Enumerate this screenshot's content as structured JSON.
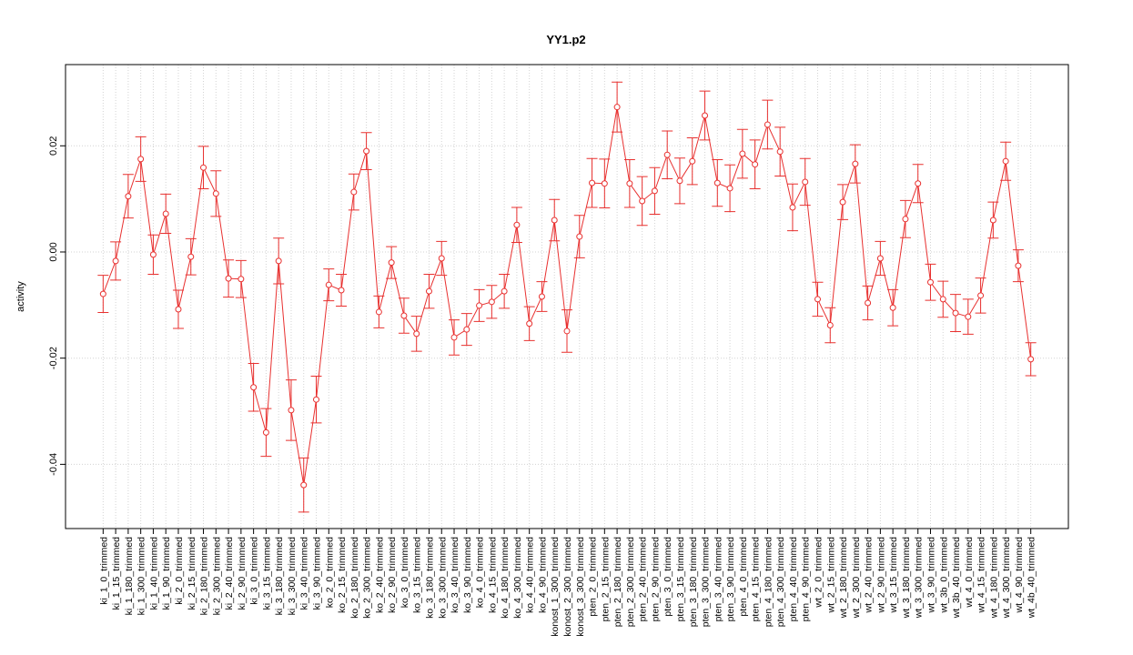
{
  "chart_data": {
    "type": "line",
    "title": "YY1.p2",
    "y_label": "activity",
    "categories": [
      "ki_1_0_trimmed",
      "ki_1_15_trimmed",
      "ki_1_180_trimmed",
      "ki_1_300_trimmed",
      "ki_1_40_trimmed",
      "ki_1_90_trimmed",
      "ki_2_0_trimmed",
      "ki_2_15_trimmed",
      "ki_2_180_trimmed",
      "ki_2_300_trimmed",
      "ki_2_40_trimmed",
      "ki_2_90_trimmed",
      "ki_3_0_trimmed",
      "ki_3_15_trimmed",
      "ki_3_180_trimmed",
      "ki_3_300_trimmed",
      "ki_3_40_trimmed",
      "ki_3_90_trimmed",
      "ko_2_0_trimmed",
      "ko_2_15_trimmed",
      "ko_2_180_trimmed",
      "ko_2_300_trimmed",
      "ko_2_40_trimmed",
      "ko_2_90_trimmed",
      "ko_3_0_trimmed",
      "ko_3_15_trimmed",
      "ko_3_180_trimmed",
      "ko_3_300_trimmed",
      "ko_3_40_trimmed",
      "ko_3_90_trimmed",
      "ko_4_0_trimmed",
      "ko_4_15_trimmed",
      "ko_4_180_trimmed",
      "ko_4_300_trimmed",
      "ko_4_40_trimmed",
      "ko_4_90_trimmed",
      "konost_1_300_trimmed",
      "konost_2_300_trimmed",
      "konost_3_300_trimmed",
      "pten_2_0_trimmed",
      "pten_2_15_trimmed",
      "pten_2_180_trimmed",
      "pten_2_300_trimmed",
      "pten_2_40_trimmed",
      "pten_2_90_trimmed",
      "pten_3_0_trimmed",
      "pten_3_15_trimmed",
      "pten_3_180_trimmed",
      "pten_3_300_trimmed",
      "pten_3_40_trimmed",
      "pten_3_90_trimmed",
      "pten_4_0_trimmed",
      "pten_4_15_trimmed",
      "pten_4_180_trimmed",
      "pten_4_300_trimmed",
      "pten_4_40_trimmed",
      "pten_4_90_trimmed",
      "wt_2_0_trimmed",
      "wt_2_15_trimmed",
      "wt_2_180_trimmed",
      "wt_2_300_trimmed",
      "wt_2_40_trimmed",
      "wt_2_90_trimmed",
      "wt_3_15_trimmed",
      "wt_3_180_trimmed",
      "wt_3_300_trimmed",
      "wt_3_90_trimmed",
      "wt_3b_0_trimmed",
      "wt_3b_40_trimmed",
      "wt_4_0_trimmed",
      "wt_4_15_trimmed",
      "wt_4_180_trimmed",
      "wt_4_300_trimmed",
      "wt_4_90_trimmed",
      "wt_4b_40_trimmed"
    ],
    "values": [
      -0.0079,
      -0.0017,
      0.0105,
      0.0175,
      -0.0005,
      0.0072,
      -0.0108,
      -0.0009,
      0.0159,
      0.011,
      -0.005,
      -0.0051,
      -0.0255,
      -0.034,
      -0.0017,
      -0.0298,
      -0.0439,
      -0.0278,
      -0.0062,
      -0.0072,
      0.0113,
      0.019,
      -0.0113,
      -0.002,
      -0.012,
      -0.0154,
      -0.0074,
      -0.0012,
      -0.0161,
      -0.0146,
      -0.0101,
      -0.0094,
      -0.0074,
      0.0051,
      -0.0135,
      -0.0084,
      0.006,
      -0.0149,
      0.0029,
      0.013,
      0.0129,
      0.0273,
      0.0129,
      0.0096,
      0.0115,
      0.0183,
      0.0134,
      0.0171,
      0.0257,
      0.013,
      0.012,
      0.0185,
      0.0165,
      0.024,
      0.0189,
      0.0084,
      0.0132,
      -0.0089,
      -0.0138,
      0.0094,
      0.0166,
      -0.0096,
      -0.0012,
      -0.0105,
      0.0062,
      0.0129,
      -0.0057,
      -0.0089,
      -0.0115,
      -0.0122,
      -0.0082,
      0.006,
      0.0171,
      -0.0026,
      -0.0202
    ],
    "errors": [
      0.0035,
      0.0036,
      0.0041,
      0.0042,
      0.0037,
      0.0037,
      0.0036,
      0.0034,
      0.004,
      0.0043,
      0.0035,
      0.0035,
      0.0045,
      0.0045,
      0.0043,
      0.0057,
      0.0051,
      0.0044,
      0.003,
      0.003,
      0.0034,
      0.0035,
      0.003,
      0.003,
      0.0033,
      0.0033,
      0.0032,
      0.0032,
      0.0033,
      0.003,
      0.003,
      0.0031,
      0.0032,
      0.0033,
      0.0032,
      0.0028,
      0.0039,
      0.004,
      0.004,
      0.0046,
      0.0046,
      0.0047,
      0.0045,
      0.0046,
      0.0044,
      0.0045,
      0.0043,
      0.0044,
      0.0046,
      0.0044,
      0.0044,
      0.0046,
      0.0046,
      0.0046,
      0.0046,
      0.0044,
      0.0044,
      0.0032,
      0.0033,
      0.0033,
      0.0036,
      0.0032,
      0.0032,
      0.0034,
      0.0035,
      0.0036,
      0.0034,
      0.0034,
      0.0035,
      0.0033,
      0.0033,
      0.0034,
      0.0036,
      0.003,
      0.0031
    ],
    "color": "#e8302f",
    "ylim": [
      -0.0521,
      0.0353
    ],
    "yticks": [
      -0.04,
      -0.02,
      {
        "value": 0,
        "label": "0.00"
      },
      0.02
    ],
    "grid": true
  }
}
